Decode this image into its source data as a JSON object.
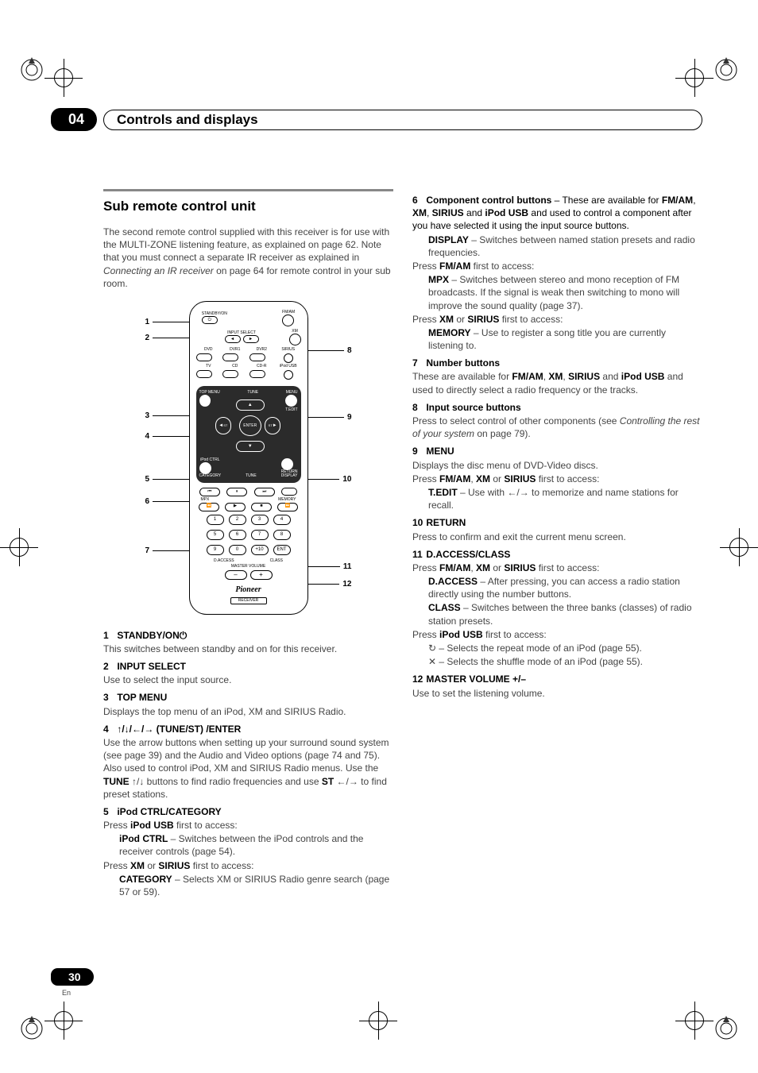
{
  "chapter": {
    "num": "04",
    "title": "Controls and displays"
  },
  "page": {
    "num": "30",
    "lang": "En"
  },
  "section_title": "Sub remote control unit",
  "intro_parts": {
    "p1": "The second remote control supplied with this receiver is for use with the MULTI-ZONE listening feature, as explained on page 62. Note that you must connect a separate IR receiver as explained in ",
    "em": "Connecting an IR receiver",
    "p2": " on page 64 for remote control in your sub room."
  },
  "remote_leaders_left": [
    "1",
    "2",
    "3",
    "4",
    "5",
    "6",
    "7"
  ],
  "remote_leaders_right": [
    "8",
    "9",
    "10",
    "11",
    "12"
  ],
  "remote": {
    "standby_label": "STANDBY/ON",
    "fmam_label": "FM/AM",
    "input_select_label": "INPUT SELECT",
    "xm_label": "XM",
    "row_src_top": [
      "DVD",
      "DVR1",
      "DVR2",
      "SIRIUS"
    ],
    "row_src_bot": [
      "TV",
      "CD",
      "CD-R",
      "iPod USB"
    ],
    "topmenu": "TOP MENU",
    "tune": "TUNE",
    "menu": "MENU",
    "enter": "ENTER",
    "st_left": "ST",
    "st_right": "ST",
    "ipod_ctrl": "iPod CTRL",
    "return": "RETURN",
    "tedit": "T.EDIT",
    "category": "CATEGORY",
    "tune2": "TUNE",
    "display": "DISPLAY",
    "mpx": "MPX",
    "memory": "MEMORY",
    "daccess": "D.ACCESS",
    "class": "CLASS",
    "plus_ten": "+10",
    "ent": "ENT",
    "master_volume": "MASTER VOLUME",
    "logo": "Pioneer",
    "receiver": "RECEIVER"
  },
  "left_items": [
    {
      "n": "1",
      "t": "STANDBY/ON",
      "icon": "power",
      "body": [
        "This switches between standby and on for this receiver."
      ]
    },
    {
      "n": "2",
      "t": "INPUT SELECT",
      "body": [
        "Use to select the input source."
      ]
    },
    {
      "n": "3",
      "t": "TOP MENU",
      "body": [
        "Displays the top menu of an iPod, XM and SIRIUS Radio."
      ]
    },
    {
      "n": "4",
      "t_html": "↑/↓/←/→ (TUNE/ST) /ENTER",
      "body": [
        "Use the arrow buttons when setting up your surround sound system (see page 39) and the Audio and Video options (page 74 and 75). Also used to control iPod, XM and SIRIUS Radio menus. Use the <b>TUNE</b> ↑/↓ buttons to find radio frequencies and use <b>ST</b> ←/→ to find preset stations."
      ]
    },
    {
      "n": "5",
      "t": "iPod CTRL/CATEGORY",
      "body": [
        "Press <b>iPod USB</b> first to access:"
      ],
      "indent": [
        {
          "b": "iPod CTRL",
          "rest": " – Switches between the iPod controls and the receiver controls (page 54)."
        }
      ],
      "body2": [
        "Press <b>XM</b> or <b>SIRIUS</b> first to access:"
      ],
      "indent2": [
        {
          "b": "CATEGORY",
          "rest": " – Selects XM or SIRIUS Radio genre search (page 57 or 59)."
        }
      ]
    }
  ],
  "right_items": [
    {
      "n": "6",
      "t": "Component control buttons",
      "tail": " – These are available for <b>FM/AM</b>, <b>XM</b>, <b>SIRIUS</b> and <b>iPod USB</b> and used to control a component after you have selected it using the input source buttons.",
      "indent": [
        {
          "b": "DISPLAY",
          "rest": " – Switches between named station presets and radio frequencies."
        }
      ],
      "body": [
        "Press <b>FM/AM</b> first to access:"
      ],
      "indent2": [
        {
          "b": "MPX",
          "rest": " – Switches between stereo and mono reception of FM broadcasts. If the signal is weak then switching to mono will improve the sound quality (page 37)."
        }
      ],
      "body2": [
        "Press <b>XM</b> or <b>SIRIUS</b> first to access:"
      ],
      "indent3": [
        {
          "b": "MEMORY",
          "rest": " – Use to register a song title you are currently listening to."
        }
      ]
    },
    {
      "n": "7",
      "t": "Number buttons",
      "body": [
        "These are available for <b>FM/AM</b>, <b>XM</b>, <b>SIRIUS</b> and <b>iPod USB</b> and used to directly select a radio frequency or the tracks."
      ]
    },
    {
      "n": "8",
      "t": "Input source buttons",
      "body": [
        "Press to select control of other components (see <i>Controlling the rest of your system</i> on page 79)."
      ]
    },
    {
      "n": "9",
      "t": "MENU",
      "body": [
        "Displays the disc menu of DVD-Video discs.",
        "Press <b>FM/AM</b>, <b>XM</b> or <b>SIRIUS</b> first to access:"
      ],
      "indent": [
        {
          "b": "T.EDIT",
          "rest": " – Use with ←/→ to memorize and name stations for recall."
        }
      ]
    },
    {
      "n": "10",
      "t": "RETURN",
      "body": [
        "Press to confirm and exit the current menu screen."
      ]
    },
    {
      "n": "11",
      "t": "D.ACCESS/CLASS",
      "body": [
        "Press <b>FM/AM</b>, <b>XM</b> or <b>SIRIUS</b> first to access:"
      ],
      "indent": [
        {
          "b": "D.ACCESS",
          "rest": " – After pressing, you can access a radio station directly using the number buttons."
        },
        {
          "b": "CLASS",
          "rest": " – Switches between the three banks (classes) of radio station presets."
        }
      ],
      "body2": [
        "Press <b>iPod USB</b> first to access:"
      ],
      "indent2": [
        {
          "icon": "repeat",
          "rest": " – Selects the repeat mode of an iPod (page 55)."
        },
        {
          "icon": "shuffle",
          "rest": " – Selects the shuffle mode of an iPod (page 55)."
        }
      ]
    },
    {
      "n": "12",
      "t": "MASTER VOLUME +/–",
      "body": [
        "Use to set the listening volume."
      ]
    }
  ],
  "icons": {
    "repeat": "↻",
    "shuffle": "✕",
    "power": "⏻"
  },
  "colors": {
    "text": "#000000",
    "muted": "#444444",
    "bar": "#888888",
    "bg": "#ffffff"
  }
}
